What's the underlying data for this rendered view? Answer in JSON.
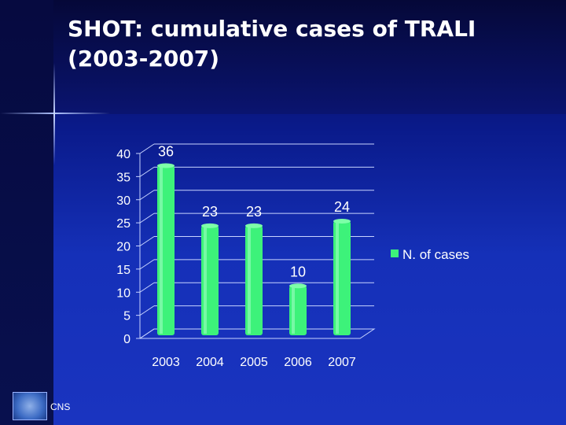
{
  "slide": {
    "title_line1": "SHOT: cumulative cases of TRALI",
    "title_line2": "(2003-2007)",
    "logo_text": "CNS"
  },
  "colors": {
    "bar": "#3df27a",
    "text": "#ffffff",
    "gridline": "#c8d4ff"
  },
  "chart_data": {
    "type": "bar",
    "title": "SHOT: cumulative cases of TRALI (2003-2007)",
    "categories": [
      "2003",
      "2004",
      "2005",
      "2006",
      "2007"
    ],
    "series": [
      {
        "name": "N. of cases",
        "values": [
          36,
          23,
          23,
          10,
          24
        ]
      }
    ],
    "data_labels": [
      "36",
      "23",
      "23",
      "10",
      "24"
    ],
    "ylim": [
      0,
      40
    ],
    "yticks": [
      "0",
      "5",
      "10",
      "15",
      "20",
      "25",
      "30",
      "35",
      "40"
    ],
    "xlabel": "",
    "ylabel": "",
    "grid": true,
    "legend_position": "right"
  }
}
